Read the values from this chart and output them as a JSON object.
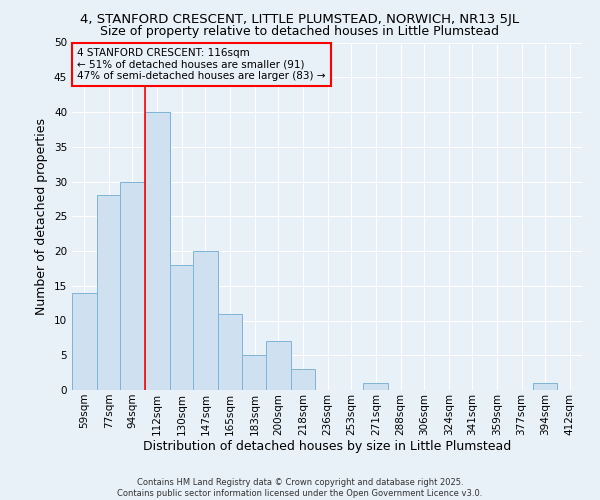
{
  "title1": "4, STANFORD CRESCENT, LITTLE PLUMSTEAD, NORWICH, NR13 5JL",
  "title2": "Size of property relative to detached houses in Little Plumstead",
  "xlabel": "Distribution of detached houses by size in Little Plumstead",
  "ylabel": "Number of detached properties",
  "bar_color": "#cfe0f0",
  "bar_edgecolor": "#7eb4d8",
  "redline_x": 112,
  "annotation_title": "4 STANFORD CRESCENT: 116sqm",
  "annotation_line1": "← 51% of detached houses are smaller (91)",
  "annotation_line2": "47% of semi-detached houses are larger (83) →",
  "footer": "Contains HM Land Registry data © Crown copyright and database right 2025.\nContains public sector information licensed under the Open Government Licence v3.0.",
  "categories": [
    "59sqm",
    "77sqm",
    "94sqm",
    "112sqm",
    "130sqm",
    "147sqm",
    "165sqm",
    "183sqm",
    "200sqm",
    "218sqm",
    "236sqm",
    "253sqm",
    "271sqm",
    "288sqm",
    "306sqm",
    "324sqm",
    "341sqm",
    "359sqm",
    "377sqm",
    "394sqm",
    "412sqm"
  ],
  "bin_left": [
    50,
    68,
    85,
    103,
    121,
    138,
    156,
    174,
    191,
    209,
    227,
    244,
    262,
    280,
    297,
    315,
    332,
    350,
    368,
    385,
    403
  ],
  "bin_width": 18,
  "values": [
    14,
    28,
    30,
    40,
    18,
    20,
    11,
    5,
    7,
    3,
    0,
    0,
    1,
    0,
    0,
    0,
    0,
    0,
    0,
    1,
    0
  ],
  "xlim_left": 50,
  "xlim_right": 421,
  "ylim": [
    0,
    50
  ],
  "yticks": [
    0,
    5,
    10,
    15,
    20,
    25,
    30,
    35,
    40,
    45,
    50
  ],
  "background_color": "#e8f0f8",
  "grid_color": "#ffffff",
  "title_fontsize": 9.5,
  "subtitle_fontsize": 9,
  "axis_label_fontsize": 9,
  "tick_fontsize": 7.5,
  "annot_fontsize": 7.5,
  "footer_fontsize": 6
}
